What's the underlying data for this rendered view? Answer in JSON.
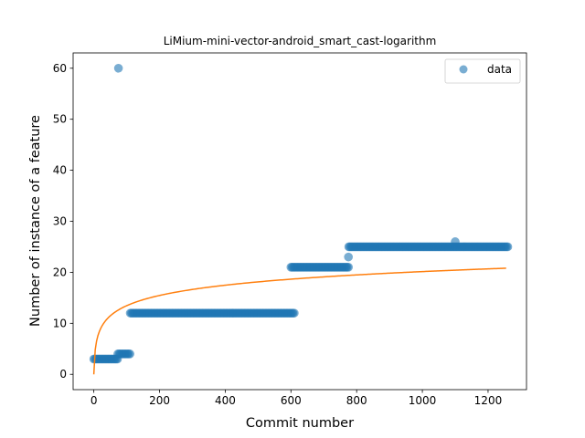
{
  "chart_data": {
    "type": "scatter",
    "title": "LiMium-mini-vector-android_smart_cast-logarithm",
    "xlabel": "Commit number",
    "ylabel": "Number of instance of a feature",
    "xlim": [
      -63,
      1317
    ],
    "ylim": [
      -3,
      63
    ],
    "xticks": [
      0,
      200,
      400,
      600,
      800,
      1000,
      1200
    ],
    "yticks": [
      0,
      10,
      20,
      30,
      40,
      50,
      60
    ],
    "legend": {
      "position": "top-right",
      "entries": [
        "data"
      ]
    },
    "colors": {
      "data": "#1f77b4",
      "fit": "#ff7f0e"
    },
    "grid": false,
    "series": [
      {
        "name": "data",
        "kind": "points",
        "segments": [
          {
            "x_start": 0,
            "x_end": 72,
            "y": 3
          },
          {
            "x_start": 73,
            "x_end": 110,
            "y": 4
          },
          {
            "x_start": 111,
            "x_end": 610,
            "y": 12
          },
          {
            "x_start": 600,
            "x_end": 775,
            "y": 21
          },
          {
            "x_start": 776,
            "x_end": 1260,
            "y": 25
          }
        ],
        "extra_points": [
          {
            "x": 75,
            "y": 60
          },
          {
            "x": 775,
            "y": 23
          },
          {
            "x": 1100,
            "y": 26
          }
        ]
      },
      {
        "kind": "line",
        "model": "logarithm",
        "coef_a": 2.915,
        "x_range": [
          0,
          1255
        ],
        "y_at_start": 0
      }
    ]
  }
}
